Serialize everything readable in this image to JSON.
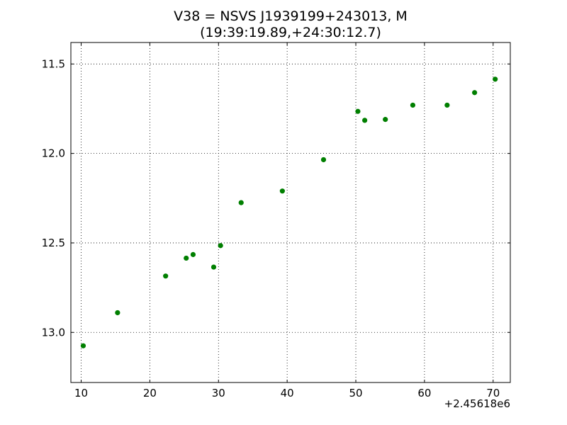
{
  "chart_data": {
    "type": "scatter",
    "title": "V38 = NSVS J1939199+243013, M",
    "subtitle": "(19:39:19.89,+24:30:12.7)",
    "xlabel": "",
    "ylabel": "",
    "x_offset_label": "+2.45618e6",
    "xlim": [
      8.5,
      72.5
    ],
    "ylim": [
      13.28,
      11.38
    ],
    "y_inverted": true,
    "x_ticks": [
      10,
      20,
      30,
      40,
      50,
      60,
      70
    ],
    "x_tick_labels": [
      "10",
      "20",
      "30",
      "40",
      "50",
      "60",
      "70"
    ],
    "y_ticks": [
      11.5,
      12.0,
      12.5,
      13.0
    ],
    "y_tick_labels": [
      "11.5",
      "12.0",
      "12.5",
      "13.0"
    ],
    "grid": true,
    "marker_color": "#007f00",
    "series": [
      {
        "x": [
          10.3,
          15.3,
          22.3,
          25.3,
          26.3,
          29.3,
          30.3,
          33.3,
          39.3,
          45.3,
          50.3,
          51.3,
          54.3,
          58.3,
          63.3,
          67.3,
          70.3
        ],
        "y": [
          13.075,
          12.89,
          12.685,
          12.585,
          12.565,
          12.635,
          12.515,
          12.275,
          12.21,
          12.035,
          11.765,
          11.815,
          11.81,
          11.73,
          11.73,
          11.66,
          11.585
        ]
      }
    ]
  }
}
